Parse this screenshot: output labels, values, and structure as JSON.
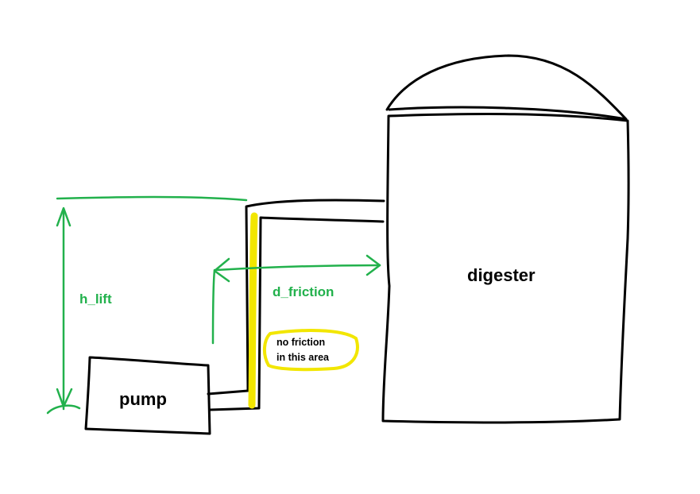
{
  "labels": {
    "digester": "digester",
    "pump": "pump",
    "h_lift": "h_lift",
    "d_friction": "d_friction",
    "note_line1": "no friction",
    "note_line2": "in this area"
  },
  "colors": {
    "outline": "#000000",
    "measure": "#22b14c",
    "highlight": "#f2e600",
    "background": "#ffffff"
  }
}
